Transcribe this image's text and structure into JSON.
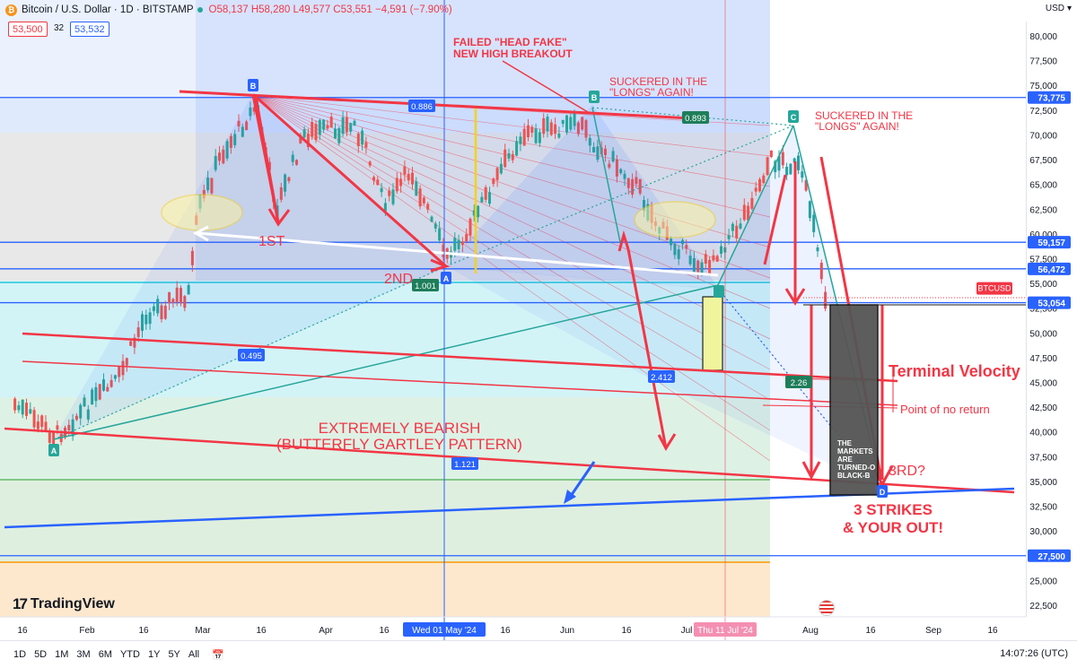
{
  "header": {
    "symbol": "Bitcoin / U.S. Dollar · 1D · BITSTAMP",
    "open": "O58,137",
    "high": "H58,280",
    "low": "L49,577",
    "close": "C53,551",
    "change": "−4,591 (−7.90%)",
    "sell_price": "53,500",
    "spread": "32",
    "buy_price": "53,532",
    "currency": "USD"
  },
  "price_labels": [
    {
      "text": "73,775",
      "price": 73775,
      "color": "#2962ff"
    },
    {
      "text": "59,157",
      "price": 59157,
      "color": "#2962ff"
    },
    {
      "text": "56,472",
      "price": 56472,
      "color": "#2962ff"
    },
    {
      "text": "53,054",
      "price": 53054,
      "color": "#2962ff"
    },
    {
      "text": "27,500",
      "price": 27500,
      "color": "#2962ff"
    }
  ],
  "btcusd_tag": {
    "text": "BTCUSD",
    "color": "#f23645"
  },
  "x_axis_ticks": [
    {
      "label": "16",
      "x": 25
    },
    {
      "label": "Feb",
      "x": 97
    },
    {
      "label": "16",
      "x": 160
    },
    {
      "label": "Mar",
      "x": 226
    },
    {
      "label": "16",
      "x": 291
    },
    {
      "label": "Apr",
      "x": 363
    },
    {
      "label": "16",
      "x": 428
    },
    {
      "label": "16",
      "x": 563
    },
    {
      "label": "Jun",
      "x": 632
    },
    {
      "label": "16",
      "x": 698
    },
    {
      "label": "Jul",
      "x": 765
    },
    {
      "label": "Aug",
      "x": 903
    },
    {
      "label": "16",
      "x": 970
    },
    {
      "label": "Sep",
      "x": 1040
    },
    {
      "label": "16",
      "x": 1106
    }
  ],
  "x_axis_highlights": [
    {
      "label": "Wed 01 May '24",
      "color": "#2962ff"
    },
    {
      "label": "Thu 11 Jul '24",
      "color": "#f48fb1"
    }
  ],
  "annotations": [
    {
      "id": "failed-head-fake",
      "text": [
        "FAILED \"HEAD FAKE\"",
        "NEW HIGH BREAKOUT"
      ],
      "color": "#f23645"
    },
    {
      "id": "suckered-1",
      "text": [
        "SUCKERED IN THE",
        "\"LONGS\" AGAIN!"
      ],
      "color": "#f23645"
    },
    {
      "id": "suckered-2",
      "text": [
        "SUCKERED IN THE",
        "\"LONGS\" AGAIN!"
      ],
      "color": "#f23645"
    },
    {
      "id": "first",
      "text": [
        "1ST"
      ],
      "color": "#f23645"
    },
    {
      "id": "second",
      "text": [
        "2ND"
      ],
      "color": "#f23645"
    },
    {
      "id": "third",
      "text": [
        "3RD?"
      ],
      "color": "#f23645"
    },
    {
      "id": "extremely-bearish",
      "text": [
        "EXTREMELY BEARISH",
        "(BUTTERFLY GARTLEY PATTERN)"
      ],
      "color": "#f23645"
    },
    {
      "id": "terminal-velocity",
      "text": [
        "Terminal Velocity"
      ],
      "color": "#f23645"
    },
    {
      "id": "point-of-no-return",
      "text": [
        "Point of no return"
      ],
      "color": "#f23645"
    },
    {
      "id": "three-strikes",
      "text": [
        "3 STRIKES",
        "& YOUR OUT!"
      ],
      "color": "#f23645"
    },
    {
      "id": "markets-blackbox",
      "text": [
        "THE",
        "MARKETS",
        "ARE",
        "TURNED-O",
        "BLACK-B"
      ],
      "color": "#ffffff"
    }
  ],
  "pattern_points": [
    {
      "label": "A"
    },
    {
      "label": "B"
    },
    {
      "label": "A"
    },
    {
      "label": "B"
    },
    {
      "label": "C"
    },
    {
      "label": "D"
    }
  ],
  "ratio_labels": [
    "0.886",
    "0.893",
    "1.001",
    "0.495",
    "2.412",
    "2.26",
    "1.121"
  ],
  "timeframes": [
    "1D",
    "5D",
    "1M",
    "3M",
    "6M",
    "YTD",
    "1Y",
    "5Y",
    "All"
  ],
  "clock": "14:07:26 (UTC)",
  "branding": "TradingView",
  "chart_data": {
    "type": "candlestick",
    "title": "Bitcoin / U.S. Dollar · 1D · BITSTAMP",
    "y_axis_ticks": [
      80000,
      77500,
      75000,
      72500,
      70000,
      67500,
      65000,
      62500,
      60000,
      57500,
      55000,
      52500,
      50000,
      47500,
      45000,
      42500,
      40000,
      37500,
      35000,
      32500,
      30000,
      27500,
      25000,
      22500
    ],
    "ylim": [
      21000,
      82000
    ],
    "x_range": [
      "2024-01-09",
      "2024-09-24"
    ],
    "series": [
      {
        "date": "2024-01-12",
        "price": 43000
      },
      {
        "date": "2024-01-23",
        "price": 39600
      },
      {
        "date": "2024-02-08",
        "price": 45300
      },
      {
        "date": "2024-02-15",
        "price": 52000
      },
      {
        "date": "2024-02-26",
        "price": 54000
      },
      {
        "date": "2024-02-28",
        "price": 62000
      },
      {
        "date": "2024-03-05",
        "price": 68000
      },
      {
        "date": "2024-03-14",
        "price": 73000
      },
      {
        "date": "2024-03-19",
        "price": 62500
      },
      {
        "date": "2024-03-26",
        "price": 70000
      },
      {
        "date": "2024-04-08",
        "price": 71000
      },
      {
        "date": "2024-04-16",
        "price": 63000
      },
      {
        "date": "2024-04-22",
        "price": 66500
      },
      {
        "date": "2024-05-01",
        "price": 57500
      },
      {
        "date": "2024-05-08",
        "price": 61500
      },
      {
        "date": "2024-05-20",
        "price": 70000
      },
      {
        "date": "2024-06-04",
        "price": 71000
      },
      {
        "date": "2024-06-07",
        "price": 69300
      },
      {
        "date": "2024-06-18",
        "price": 65000
      },
      {
        "date": "2024-06-24",
        "price": 60500
      },
      {
        "date": "2024-07-05",
        "price": 56500
      },
      {
        "date": "2024-07-14",
        "price": 60800
      },
      {
        "date": "2024-07-22",
        "price": 67500
      },
      {
        "date": "2024-07-29",
        "price": 66800
      },
      {
        "date": "2024-08-02",
        "price": 61500
      },
      {
        "date": "2024-08-05",
        "price": 53551
      }
    ],
    "levels": [
      73775,
      59157,
      56472,
      53054,
      27500
    ],
    "grid": false
  }
}
